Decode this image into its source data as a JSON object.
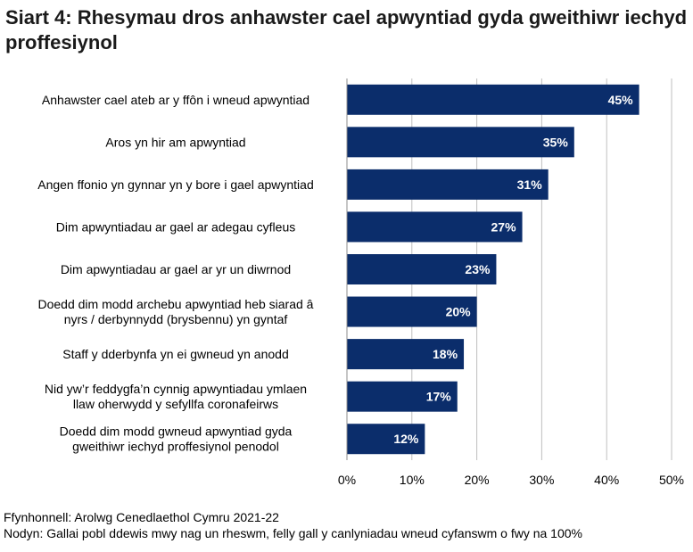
{
  "chart_data": {
    "type": "bar",
    "orientation": "horizontal",
    "title": "Siart 4: Rhesymau dros anhawster cael apwyntiad gyda gweithiwr iechyd proffesiynol",
    "categories": [
      [
        "Anhawster cael ateb ar y ffôn i wneud apwyntiad"
      ],
      [
        "Aros yn hir am apwyntiad"
      ],
      [
        "Angen ffonio yn gynnar yn y bore i gael apwyntiad"
      ],
      [
        "Dim apwyntiadau ar gael ar adegau cyfleus"
      ],
      [
        "Dim apwyntiadau ar gael ar yr un diwrnod"
      ],
      [
        "Doedd dim modd archebu apwyntiad heb siarad â",
        "nyrs / derbynnydd (brysbennu) yn gyntaf"
      ],
      [
        "Staff y dderbynfa yn ei gwneud yn anodd"
      ],
      [
        "Nid yw’r feddygfa’n cynnig apwyntiadau ymlaen",
        "llaw oherwydd y sefyllfa coronafeirws"
      ],
      [
        "Doedd dim modd gwneud apwyntiad gyda",
        "gweithiwr iechyd proffesiynol penodol"
      ]
    ],
    "values": [
      45,
      35,
      31,
      27,
      23,
      20,
      18,
      17,
      12
    ],
    "data_labels": [
      "45%",
      "35%",
      "31%",
      "27%",
      "23%",
      "20%",
      "18%",
      "17%",
      "12%"
    ],
    "xlim": [
      0,
      50
    ],
    "x_ticks": [
      0,
      10,
      20,
      30,
      40,
      50
    ],
    "x_tick_labels": [
      "0%",
      "10%",
      "20%",
      "30%",
      "40%",
      "50%"
    ],
    "grid": "vertical",
    "bar_color": "#0b2d6b",
    "xlabel": "",
    "ylabel": ""
  },
  "footer": {
    "source": "Ffynhonnell: Arolwg Cenedlaethol Cymru 2021-22",
    "note": "Nodyn: Gallai pobl ddewis mwy nag un rheswm, felly gall y canlyniadau wneud cyfanswm o fwy na 100%"
  }
}
